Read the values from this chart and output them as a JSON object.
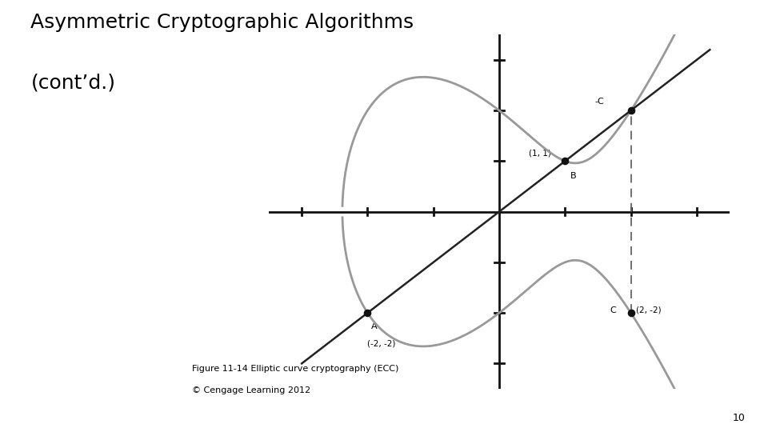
{
  "title_line1": "Asymmetric Cryptographic Algorithms",
  "title_line2": "(cont’d.)",
  "caption_line1": "Figure 11-14 Elliptic curve cryptography (ECC)",
  "caption_line2": "© Cengage Learning 2012",
  "page_number": "10",
  "curve_color": "#999999",
  "line_color": "#222222",
  "point_color": "#111111",
  "bg_color": "#ffffff",
  "axis_color": "#111111",
  "dashed_color": "#666666",
  "xlim": [
    -3.5,
    3.5
  ],
  "ylim": [
    -3.5,
    3.5
  ],
  "x_ticks": [
    -3,
    -2,
    -1,
    1,
    2,
    3
  ],
  "y_ticks": [
    -3,
    -2,
    -1,
    1,
    2,
    3
  ]
}
